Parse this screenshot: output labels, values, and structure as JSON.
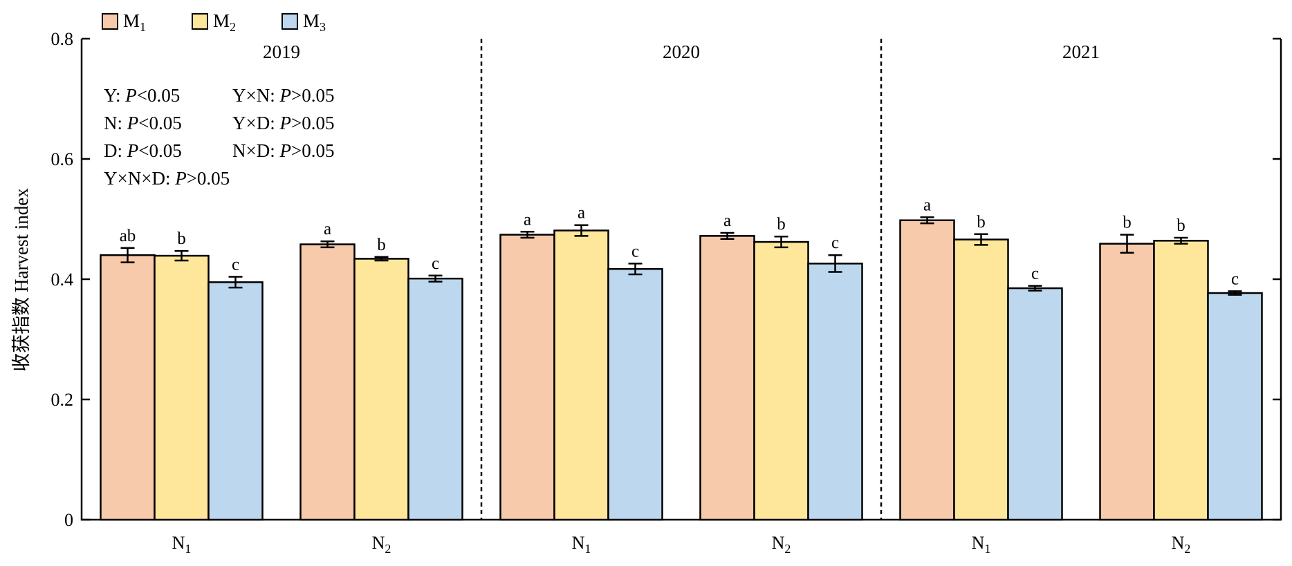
{
  "chart_data": {
    "type": "bar",
    "ylabel": "收获指数 Harvest index",
    "ylim": [
      0,
      0.8
    ],
    "yticks": [
      "0",
      "0.2",
      "0.4",
      "0.6",
      "0.8"
    ],
    "legend": {
      "placement": "top-left",
      "entries": [
        {
          "base": "M",
          "sub": "1",
          "color": "#F8CAAC"
        },
        {
          "base": "M",
          "sub": "2",
          "color": "#FEE69B"
        },
        {
          "base": "M",
          "sub": "3",
          "color": "#BDD7EE"
        }
      ]
    },
    "stats": [
      {
        "label": "Y: ",
        "p": "P",
        "rel": "<0.05",
        "col": 0,
        "row": 0
      },
      {
        "label": "Y×N: ",
        "p": "P",
        "rel": ">0.05",
        "col": 1,
        "row": 0
      },
      {
        "label": "N: ",
        "p": "P",
        "rel": "<0.05",
        "col": 0,
        "row": 1
      },
      {
        "label": "Y×D: ",
        "p": "P",
        "rel": ">0.05",
        "col": 1,
        "row": 1
      },
      {
        "label": "D: ",
        "p": "P",
        "rel": "<0.05",
        "col": 0,
        "row": 2
      },
      {
        "label": "N×D: ",
        "p": "P",
        "rel": ">0.05",
        "col": 1,
        "row": 2
      },
      {
        "label": "Y×N×D: ",
        "p": "P",
        "rel": ">0.05",
        "col": 0,
        "row": 3
      }
    ],
    "groups": [
      {
        "year": "2019",
        "nitrogen": [
          {
            "base": "N",
            "sub": "1",
            "values": [
              0.44,
              0.439,
              0.395
            ],
            "errors": [
              0.012,
              0.008,
              0.009
            ],
            "letters": [
              "ab",
              "b",
              "c"
            ]
          },
          {
            "base": "N",
            "sub": "2",
            "values": [
              0.458,
              0.434,
              0.401
            ],
            "errors": [
              0.005,
              0.003,
              0.005
            ],
            "letters": [
              "a",
              "b",
              "c"
            ]
          }
        ]
      },
      {
        "year": "2020",
        "nitrogen": [
          {
            "base": "N",
            "sub": "1",
            "values": [
              0.474,
              0.481,
              0.417
            ],
            "errors": [
              0.005,
              0.009,
              0.009
            ],
            "letters": [
              "a",
              "a",
              "c"
            ]
          },
          {
            "base": "N",
            "sub": "2",
            "values": [
              0.472,
              0.462,
              0.426
            ],
            "errors": [
              0.005,
              0.009,
              0.014
            ],
            "letters": [
              "a",
              "b",
              "c"
            ]
          }
        ]
      },
      {
        "year": "2021",
        "nitrogen": [
          {
            "base": "N",
            "sub": "1",
            "values": [
              0.498,
              0.466,
              0.385
            ],
            "errors": [
              0.005,
              0.009,
              0.004
            ],
            "letters": [
              "a",
              "b",
              "c"
            ]
          },
          {
            "base": "N",
            "sub": "2",
            "values": [
              0.459,
              0.464,
              0.377
            ],
            "errors": [
              0.015,
              0.005,
              0.003
            ],
            "letters": [
              "b",
              "b",
              "c"
            ]
          }
        ]
      }
    ]
  }
}
